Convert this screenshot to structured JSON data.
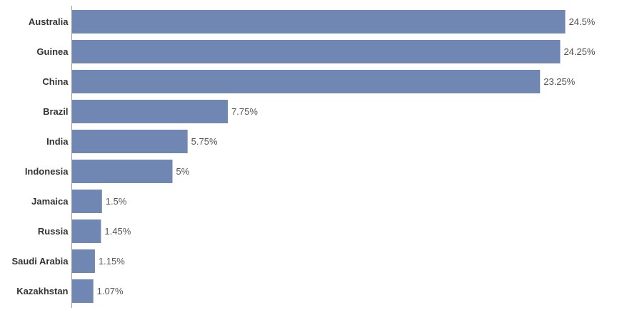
{
  "chart_data": {
    "type": "bar",
    "orientation": "horizontal",
    "categories": [
      "Australia",
      "Guinea",
      "China",
      "Brazil",
      "India",
      "Indonesia",
      "Jamaica",
      "Russia",
      "Saudi Arabia",
      "Kazakhstan"
    ],
    "values": [
      24.5,
      24.25,
      23.25,
      7.75,
      5.75,
      5,
      1.5,
      1.45,
      1.15,
      1.07
    ],
    "value_labels": [
      "24.5%",
      "24.25%",
      "23.25%",
      "7.75%",
      "5.75%",
      "5%",
      "1.5%",
      "1.45%",
      "1.15%",
      "1.07%"
    ],
    "xlim": [
      0,
      24.5
    ],
    "grid": false,
    "legend": "none",
    "bar_color": "#6f87b2",
    "axis_color": "#999999"
  }
}
